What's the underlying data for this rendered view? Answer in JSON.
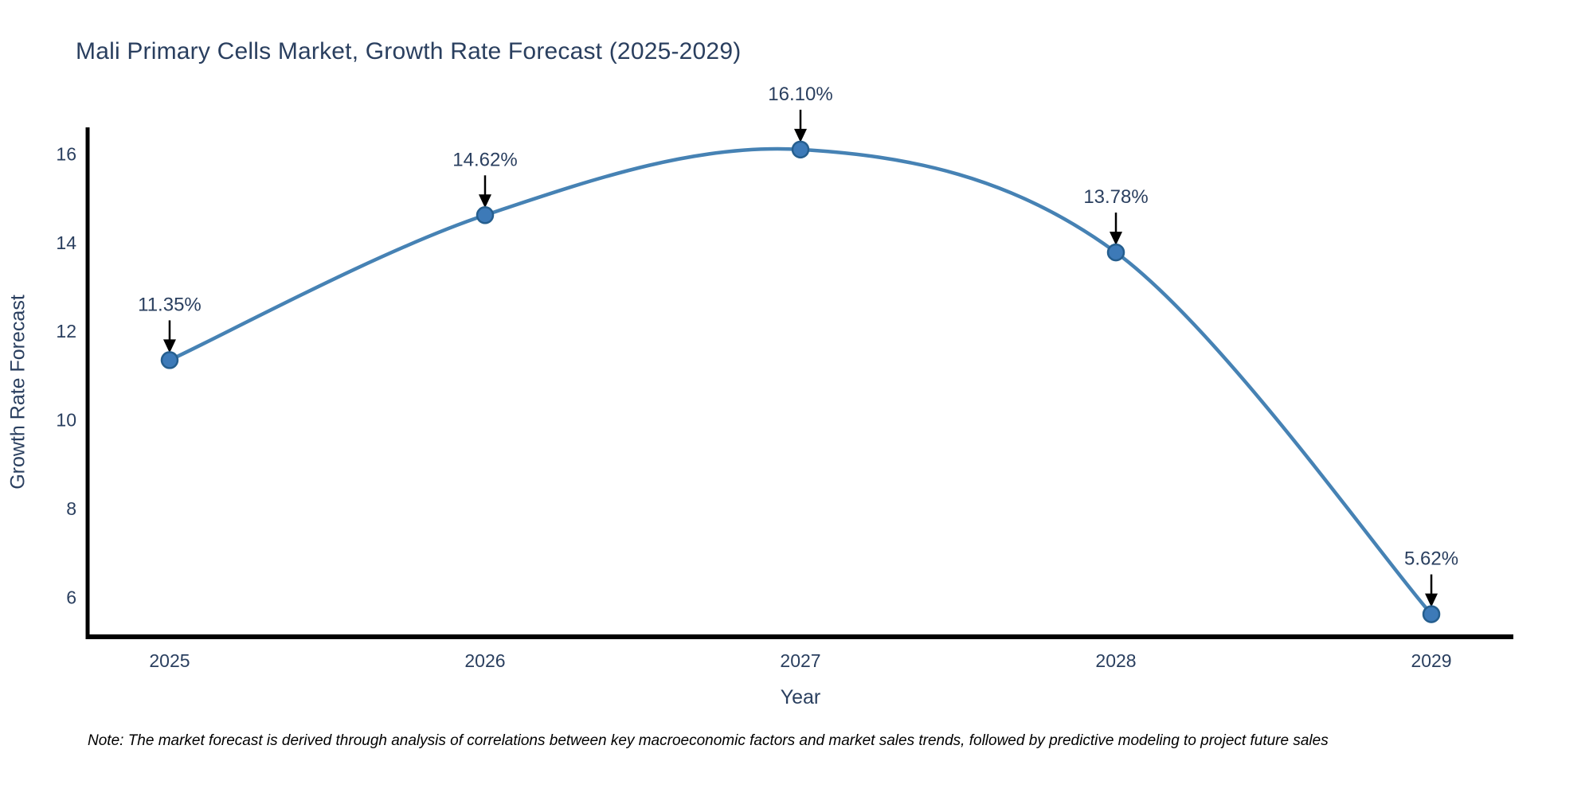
{
  "title": "Mali Primary Cells Market, Growth Rate Forecast (2025-2029)",
  "note": "Note: The market forecast is derived through analysis of correlations between key macroeconomic factors and market sales trends, followed by predictive modeling to project future sales",
  "chart_data": {
    "type": "line",
    "title": "Mali Primary Cells Market, Growth Rate Forecast (2025-2029)",
    "xlabel": "Year",
    "ylabel": "Growth Rate Forecast",
    "x": [
      2025,
      2026,
      2027,
      2028,
      2029
    ],
    "values": [
      11.35,
      14.62,
      16.1,
      13.78,
      5.62
    ],
    "point_labels": [
      "11.35%",
      "14.62%",
      "16.10%",
      "13.78%",
      "5.62%"
    ],
    "x_tick_labels": [
      "2025",
      "2026",
      "2027",
      "2028",
      "2029"
    ],
    "y_ticks": [
      6,
      8,
      10,
      12,
      14,
      16
    ],
    "x_range": [
      2024.74,
      2029.26
    ],
    "y_range": [
      5.11,
      16.6
    ],
    "line_shape": "spline",
    "grid": false,
    "legend": "none",
    "annotations": "value labels with downward black arrows above each point",
    "colors": {
      "line": "#4682b4",
      "marker_fill": "#3d7ab8",
      "marker_edge": "#255e8e",
      "axis_line": "#000000",
      "text": "#2a3f5f",
      "annotation_arrow": "#000000",
      "note_text": "#000000",
      "background": "#ffffff"
    }
  }
}
